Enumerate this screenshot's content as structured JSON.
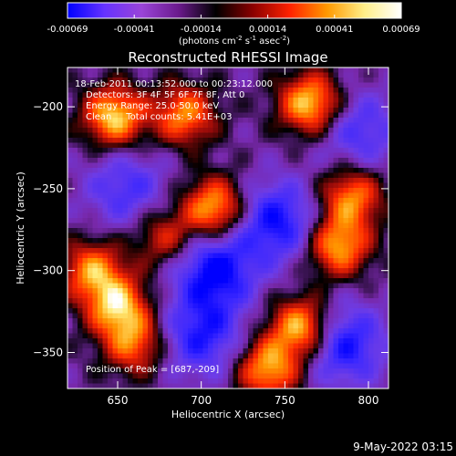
{
  "chart_data": {
    "type": "heatmap",
    "title": "Reconstructed RHESSI Image",
    "xlabel": "Heliocentric X (arcsec)",
    "ylabel": "Heliocentric Y (arcsec)",
    "xlim": [
      620,
      812
    ],
    "ylim": [
      -372,
      -176
    ],
    "x_ticks": [
      650,
      700,
      750,
      800
    ],
    "y_ticks": [
      -200,
      -250,
      -300,
      -350
    ],
    "colorbar": {
      "min": -0.00069,
      "max": 0.00069,
      "ticks": [
        "-0.00069",
        "-0.00041",
        "-0.00014",
        "0.00014",
        "0.00041",
        "0.00069"
      ],
      "label_parts": [
        "(photons cm",
        "-2",
        " s",
        "-1",
        " asec",
        "-2",
        ")"
      ],
      "colors": [
        "#0000ff",
        "#6633ff",
        "#9a44d8",
        "#6a1a8c",
        "#000000",
        "#8b0000",
        "#ff2200",
        "#ff9900",
        "#ffee88",
        "#ffffff"
      ]
    },
    "annotations": [
      "18-Feb-2011 00:13:52.000 to 00:23:12.000",
      "Detectors: 3F 4F 5F 6F 7F 8F, Att 0",
      "Energy Range: 25.0-50.0 keV",
      "Clean     Total counts: 5.41E+03"
    ],
    "peak_label": "Position of Peak = [687,-209]",
    "peak": [
      687,
      -209
    ],
    "bright_sources": [
      {
        "x": 648,
        "y": -206,
        "amp": 1.0
      },
      {
        "x": 690,
        "y": -205,
        "amp": 0.8
      },
      {
        "x": 765,
        "y": -198,
        "amp": 1.0
      },
      {
        "x": 708,
        "y": -262,
        "amp": 0.95
      },
      {
        "x": 678,
        "y": -280,
        "amp": 0.55
      },
      {
        "x": 650,
        "y": -322,
        "amp": 0.9
      },
      {
        "x": 660,
        "y": -345,
        "amp": 0.7
      },
      {
        "x": 635,
        "y": -300,
        "amp": 0.8
      },
      {
        "x": 790,
        "y": -255,
        "amp": 0.8
      },
      {
        "x": 782,
        "y": -285,
        "amp": 0.9
      },
      {
        "x": 760,
        "y": -335,
        "amp": 1.0
      },
      {
        "x": 740,
        "y": -360,
        "amp": 0.9
      }
    ],
    "dark_sources": [
      {
        "x": 708,
        "y": -300,
        "amp": 1.0
      },
      {
        "x": 745,
        "y": -270,
        "amp": 0.9
      },
      {
        "x": 700,
        "y": -340,
        "amp": 0.8
      },
      {
        "x": 785,
        "y": -345,
        "amp": 0.9
      },
      {
        "x": 655,
        "y": -250,
        "amp": 0.6
      },
      {
        "x": 795,
        "y": -215,
        "amp": 0.6
      }
    ]
  },
  "footer": {
    "timestamp": "9-May-2022 03:15"
  }
}
